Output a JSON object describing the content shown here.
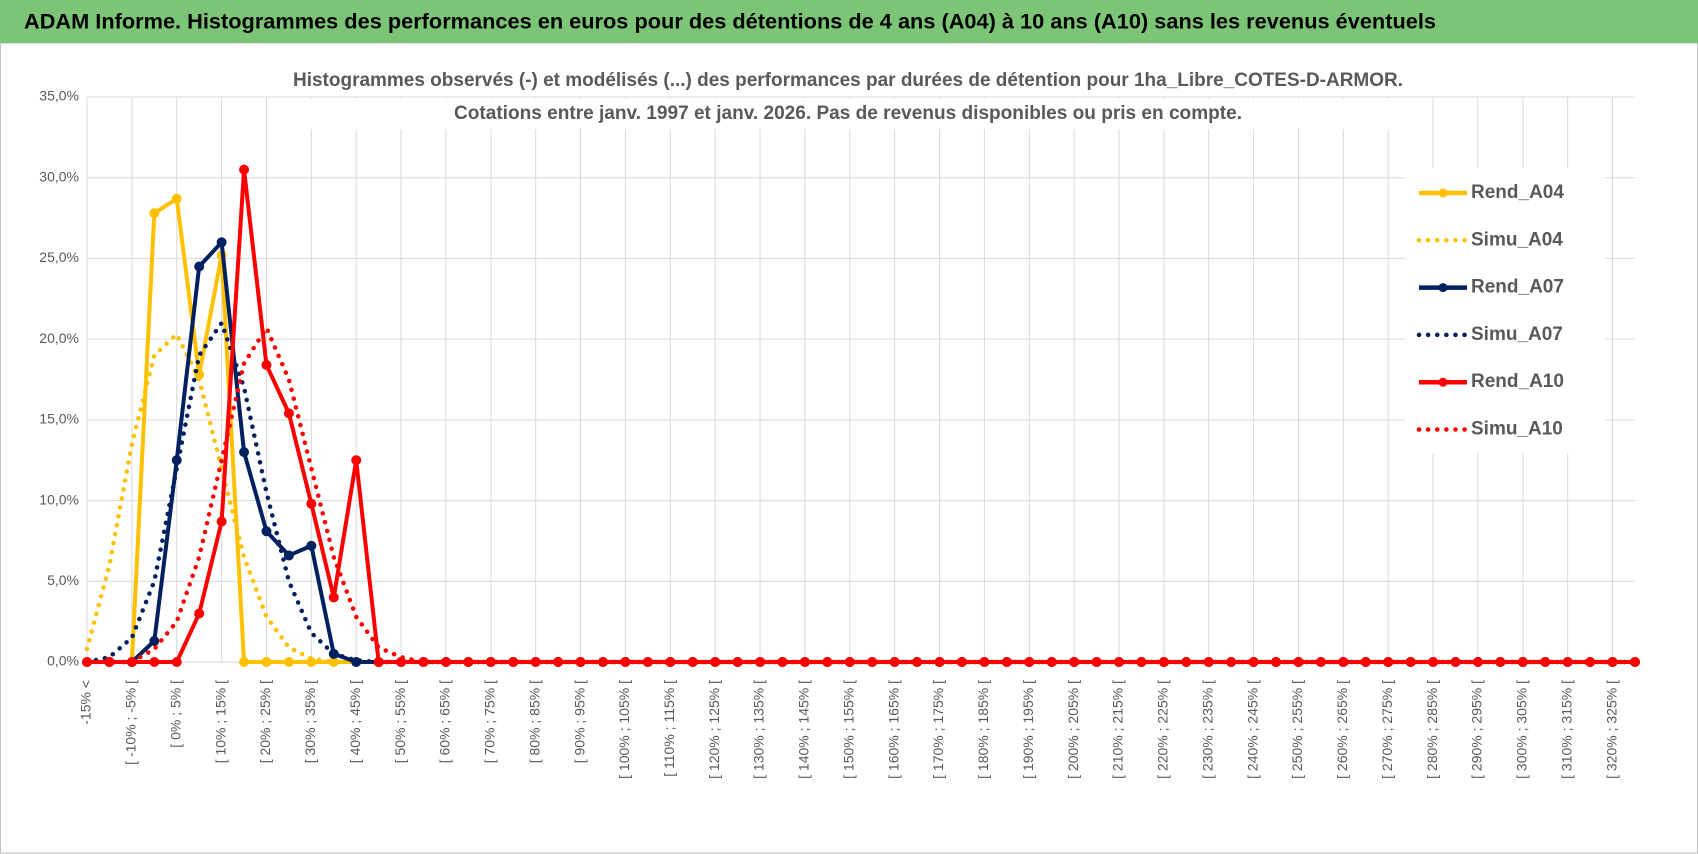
{
  "header": {
    "title": "ADAM Informe. Histogrammes des performances en euros pour des détentions de 4 ans (A04) à 10 ans (A10) sans les revenus éventuels"
  },
  "chart_data": {
    "type": "line",
    "title": [
      "Histogrammes observés (-) et modélisés (...) des performances par durées de détention pour 1ha_Libre_COTES-D-ARMOR.",
      "Cotations entre janv. 1997 et janv. 2026. Pas de revenus disponibles ou pris en compte."
    ],
    "categories": [
      "-15% <",
      null,
      "[ -10% ; -5% [",
      null,
      "[ 0% ; 5% [",
      null,
      "[ 10% ; 15% [",
      null,
      "[ 20% ; 25% [",
      null,
      "[ 30% ; 35% [",
      null,
      "[ 40% ; 45% [",
      null,
      "[ 50% ; 55% [",
      null,
      "[ 60% ; 65% [",
      null,
      "[ 70% ; 75% [",
      null,
      "[ 80% ; 85% [",
      null,
      "[ 90% ; 95% [",
      null,
      "[ 100% ; 105% [",
      null,
      "[ 110% ; 115% [",
      null,
      "[ 120% ; 125% [",
      null,
      "[ 130% ; 135% [",
      null,
      "[ 140% ; 145% [",
      null,
      "[ 150% ; 155% [",
      null,
      "[ 160% ; 165% [",
      null,
      "[ 170% ; 175% [",
      null,
      "[ 180% ; 185% [",
      null,
      "[ 190% ; 195% [",
      null,
      "[ 200% ; 205% [",
      null,
      "[ 210% ; 215% [",
      null,
      "[ 220% ; 225% [",
      null,
      "[ 230% ; 235% [",
      null,
      "[ 240% ; 245% [",
      null,
      "[ 250% ; 255% [",
      null,
      "[ 260% ; 265% [",
      null,
      "[ 270% ; 275% [",
      null,
      "[ 280% ; 285% [",
      null,
      "[ 290% ; 295% [",
      null,
      "[ 300% ; 305% [",
      null,
      "[ 310% ; 315% [",
      null,
      "[ 320% ; 325% [",
      null
    ],
    "series": [
      {
        "name": "Rend_A04",
        "color": "#FFC000",
        "style": "solid",
        "markers": true,
        "values": [
          0,
          0,
          0,
          27.8,
          28.7,
          17.8,
          25.2,
          0,
          0,
          0,
          0,
          0,
          0,
          0,
          0,
          0,
          0,
          0,
          0,
          0,
          0,
          0,
          0,
          0,
          0,
          0,
          0,
          0,
          0,
          0,
          0,
          0,
          0,
          0,
          0,
          0,
          0,
          0,
          0,
          0,
          0,
          0,
          0,
          0,
          0,
          0,
          0,
          0,
          0,
          0,
          0,
          0,
          0,
          0,
          0,
          0,
          0,
          0,
          0,
          0,
          0,
          0,
          0,
          0,
          0,
          0,
          0,
          0,
          0,
          0
        ]
      },
      {
        "name": "Simu_A04",
        "color": "#FFC000",
        "style": "dotted",
        "markers": false,
        "values": [
          0.8,
          6,
          13.5,
          19,
          20.3,
          17.5,
          12,
          6.5,
          2.8,
          0.9,
          0.2,
          0,
          0,
          0,
          0,
          0,
          0,
          0,
          0,
          0,
          0,
          0,
          0,
          0,
          0,
          0,
          0,
          0,
          0,
          0,
          0,
          0,
          0,
          0,
          0,
          0,
          0,
          0,
          0,
          0,
          0,
          0,
          0,
          0,
          0,
          0,
          0,
          0,
          0,
          0,
          0,
          0,
          0,
          0,
          0,
          0,
          0,
          0,
          0,
          0,
          0,
          0,
          0,
          0,
          0,
          0,
          0,
          0,
          0,
          0
        ]
      },
      {
        "name": "Rend_A07",
        "color": "#002060",
        "style": "solid",
        "markers": true,
        "values": [
          0,
          0,
          0,
          1.3,
          12.5,
          24.5,
          26,
          13,
          8.1,
          6.6,
          7.2,
          0.5,
          0,
          0,
          0,
          0,
          0,
          0,
          0,
          0,
          0,
          0,
          0,
          0,
          0,
          0,
          0,
          0,
          0,
          0,
          0,
          0,
          0,
          0,
          0,
          0,
          0,
          0,
          0,
          0,
          0,
          0,
          0,
          0,
          0,
          0,
          0,
          0,
          0,
          0,
          0,
          0,
          0,
          0,
          0,
          0,
          0,
          0,
          0,
          0,
          0,
          0,
          0,
          0,
          0,
          0,
          0,
          0,
          0,
          0
        ]
      },
      {
        "name": "Simu_A07",
        "color": "#002060",
        "style": "dotted",
        "markers": false,
        "values": [
          0,
          0.3,
          1.5,
          5,
          12,
          19,
          21,
          17,
          10.5,
          5,
          1.8,
          0.5,
          0.1,
          0,
          0,
          0,
          0,
          0,
          0,
          0,
          0,
          0,
          0,
          0,
          0,
          0,
          0,
          0,
          0,
          0,
          0,
          0,
          0,
          0,
          0,
          0,
          0,
          0,
          0,
          0,
          0,
          0,
          0,
          0,
          0,
          0,
          0,
          0,
          0,
          0,
          0,
          0,
          0,
          0,
          0,
          0,
          0,
          0,
          0,
          0,
          0,
          0,
          0,
          0,
          0,
          0,
          0,
          0,
          0,
          0
        ]
      },
      {
        "name": "Rend_A10",
        "color": "#FF0000",
        "style": "solid",
        "markers": true,
        "values": [
          0,
          0,
          0,
          0,
          0,
          3,
          8.7,
          30.5,
          18.4,
          15.4,
          9.8,
          4,
          12.5,
          0,
          0,
          0,
          0,
          0,
          0,
          0,
          0,
          0,
          0,
          0,
          0,
          0,
          0,
          0,
          0,
          0,
          0,
          0,
          0,
          0,
          0,
          0,
          0,
          0,
          0,
          0,
          0,
          0,
          0,
          0,
          0,
          0,
          0,
          0,
          0,
          0,
          0,
          0,
          0,
          0,
          0,
          0,
          0,
          0,
          0,
          0,
          0,
          0,
          0,
          0,
          0,
          0,
          0,
          0,
          0,
          0
        ]
      },
      {
        "name": "Simu_A10",
        "color": "#FF0000",
        "style": "dotted",
        "markers": false,
        "values": [
          0,
          0,
          0,
          0.8,
          2.5,
          6.5,
          12.5,
          18.5,
          20.7,
          17.5,
          12,
          6.5,
          2.8,
          0.9,
          0.3,
          0,
          0,
          0,
          0,
          0,
          0,
          0,
          0,
          0,
          0,
          0,
          0,
          0,
          0,
          0,
          0,
          0,
          0,
          0,
          0,
          0,
          0,
          0,
          0,
          0,
          0,
          0,
          0,
          0,
          0,
          0,
          0,
          0,
          0,
          0,
          0,
          0,
          0,
          0,
          0,
          0,
          0,
          0,
          0,
          0,
          0,
          0,
          0,
          0,
          0,
          0,
          0,
          0,
          0,
          0
        ]
      }
    ],
    "ylim": [
      0,
      35
    ],
    "yticks": [
      {
        "value": 0,
        "label": "0,0%"
      },
      {
        "value": 5,
        "label": "5,0%"
      },
      {
        "value": 10,
        "label": "10,0%"
      },
      {
        "value": 15,
        "label": "15,0%"
      },
      {
        "value": 20,
        "label": "20,0%"
      },
      {
        "value": 25,
        "label": "25,0%"
      },
      {
        "value": 30,
        "label": "30,0%"
      },
      {
        "value": 35,
        "label": "35,0%"
      }
    ],
    "grid": true,
    "legend": "right"
  }
}
